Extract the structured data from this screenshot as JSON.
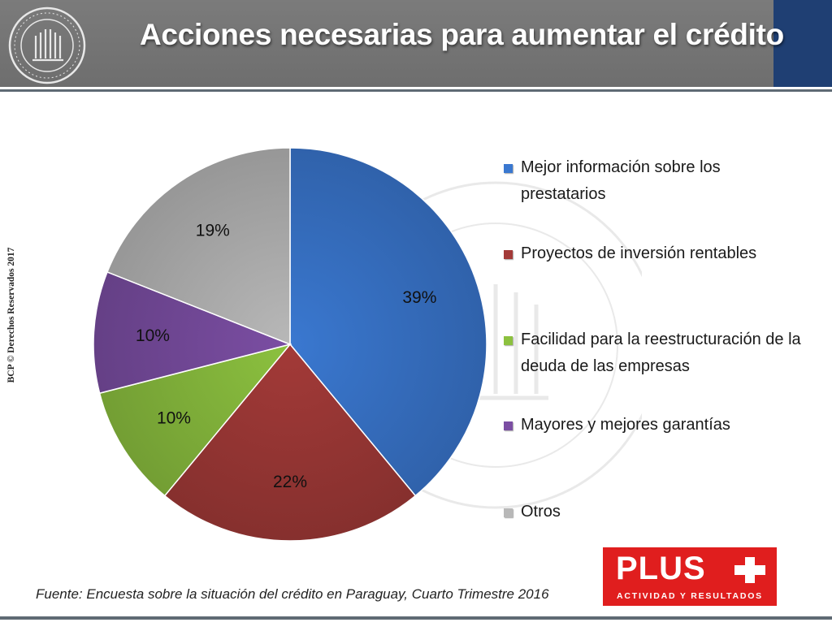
{
  "header": {
    "title": "Acciones necesarias para aumentar el crédito",
    "seal_text": "BANCO CENTRAL DEL PARAGUAY"
  },
  "copyright": "BCP © Derechos Reservados 2017",
  "source": "Fuente: Encuesta sobre la situación del crédito en Paraguay, Cuarto Trimestre 2016",
  "badge": {
    "word": "PLUS",
    "subtitle": "ACTIVIDAD Y RESULTADOS"
  },
  "colors": {
    "header_gray": "#757575",
    "header_blue": "#1f3f73",
    "badge_red": "#e01e1e"
  },
  "chart_data": {
    "type": "pie",
    "title": "",
    "start": "12 o'clock, clockwise",
    "legend_position": "right",
    "slices": [
      {
        "label": "Mejor información sobre los prestatarios",
        "value": 39,
        "display": "39%",
        "color": "#3a78d0"
      },
      {
        "label": "Proyectos de inversión rentables",
        "value": 22,
        "display": "22%",
        "color": "#a33a38"
      },
      {
        "label": "Facilidad para la reestructuración de la deuda de las empresas",
        "value": 10,
        "display": "10%",
        "color": "#8cc13f"
      },
      {
        "label": "Mayores y mejores garantías",
        "value": 10,
        "display": "10%",
        "color": "#7b4ea3"
      },
      {
        "label": "Otros",
        "value": 19,
        "display": "19%",
        "color": "#b8b8b8"
      }
    ]
  }
}
